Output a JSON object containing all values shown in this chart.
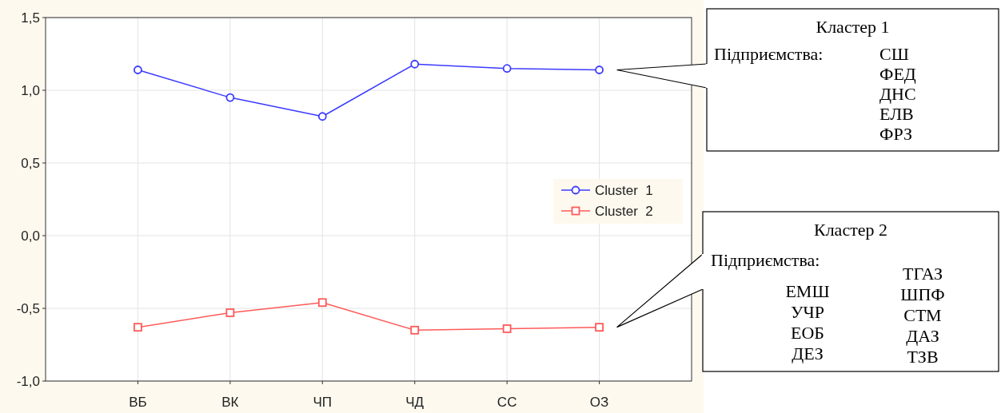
{
  "chart_data": {
    "type": "line",
    "categories": [
      "ВБ",
      "ВК",
      "ЧП",
      "ЧД",
      "СС",
      "ОЗ"
    ],
    "series": [
      {
        "name": "Cluster  1",
        "color": "#3b3bff",
        "marker": "circle",
        "values": [
          1.14,
          0.95,
          0.82,
          1.18,
          1.15,
          1.14
        ]
      },
      {
        "name": "Cluster  2",
        "color": "#ff5a5a",
        "marker": "square",
        "values": [
          -0.63,
          -0.53,
          -0.46,
          -0.65,
          -0.64,
          -0.63
        ]
      }
    ],
    "ylim": [
      -1.0,
      1.5
    ],
    "yticks": [
      {
        "value": -1.0,
        "label": "-1,0"
      },
      {
        "value": -0.5,
        "label": "-0,5"
      },
      {
        "value": 0,
        "label": "0,0"
      },
      {
        "value": 0.5,
        "label": "0,5"
      },
      {
        "value": 1.0,
        "label": "1,0"
      },
      {
        "value": 1.5,
        "label": "1,5"
      }
    ],
    "grid": true,
    "legend": "right",
    "annotations": [
      "Кластер 1",
      "Підприємства:",
      "СШ",
      "ФЕД",
      "ДНС",
      "ЕЛВ",
      "ФРЗ",
      "Кластер 2",
      "Підприємства:",
      "ЕМШ",
      "УЧР",
      "ЕОБ",
      "ДЕЗ",
      "ТГАЗ",
      "ШПФ",
      "СТМ",
      "ДАЗ",
      "ТЗВ"
    ]
  }
}
